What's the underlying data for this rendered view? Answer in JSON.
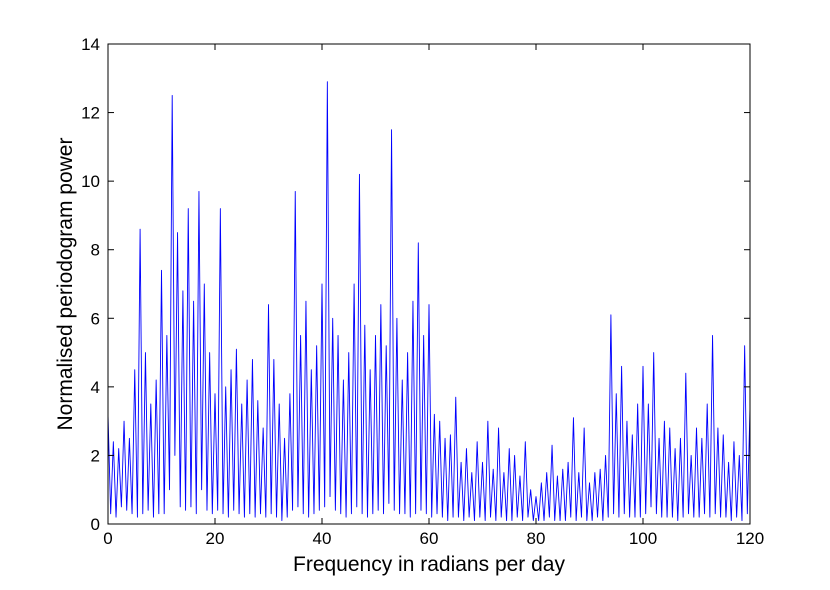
{
  "chart_data": {
    "type": "line",
    "x_label": "Frequency in radians per day",
    "y_label": "Normalised periodogram power",
    "color": "#0000ff",
    "xlim": [
      0,
      120
    ],
    "ylim": [
      0,
      14
    ],
    "xticks": [
      0,
      20,
      40,
      60,
      80,
      100,
      120
    ],
    "yticks": [
      0,
      2,
      4,
      6,
      8,
      10,
      12,
      14
    ],
    "grid": false,
    "x": [
      0,
      0.5,
      1,
      1.5,
      2,
      2.5,
      3,
      3.5,
      4,
      4.5,
      5,
      5.5,
      6,
      6.5,
      7,
      7.5,
      8,
      8.5,
      9,
      9.5,
      10,
      10.5,
      11,
      11.5,
      12,
      12.5,
      13,
      13.5,
      14,
      14.5,
      15,
      15.5,
      16,
      16.5,
      17,
      17.5,
      18,
      18.5,
      19,
      19.5,
      20,
      20.5,
      21,
      21.5,
      22,
      22.5,
      23,
      23.5,
      24,
      24.5,
      25,
      25.5,
      26,
      26.5,
      27,
      27.5,
      28,
      28.5,
      29,
      29.5,
      30,
      30.5,
      31,
      31.5,
      32,
      32.5,
      33,
      33.5,
      34,
      34.5,
      35,
      35.5,
      36,
      36.5,
      37,
      37.5,
      38,
      38.5,
      39,
      39.5,
      40,
      40.5,
      41,
      41.5,
      42,
      42.5,
      43,
      43.5,
      44,
      44.5,
      45,
      45.5,
      46,
      46.5,
      47,
      47.5,
      48,
      48.5,
      49,
      49.5,
      50,
      50.5,
      51,
      51.5,
      52,
      52.5,
      53,
      53.5,
      54,
      54.5,
      55,
      55.5,
      56,
      56.5,
      57,
      57.5,
      58,
      58.5,
      59,
      59.5,
      60,
      60.5,
      61,
      61.5,
      62,
      62.5,
      63,
      63.5,
      64,
      64.5,
      65,
      65.5,
      66,
      66.5,
      67,
      67.5,
      68,
      68.5,
      69,
      69.5,
      70,
      70.5,
      71,
      71.5,
      72,
      72.5,
      73,
      73.5,
      74,
      74.5,
      75,
      75.5,
      76,
      76.5,
      77,
      77.5,
      78,
      78.5,
      79,
      79.5,
      80,
      80.5,
      81,
      81.5,
      82,
      82.5,
      83,
      83.5,
      84,
      84.5,
      85,
      85.5,
      86,
      86.5,
      87,
      87.5,
      88,
      88.5,
      89,
      89.5,
      90,
      90.5,
      91,
      91.5,
      92,
      92.5,
      93,
      93.5,
      94,
      94.5,
      95,
      95.5,
      96,
      96.5,
      97,
      97.5,
      98,
      98.5,
      99,
      99.5,
      100,
      100.5,
      101,
      101.5,
      102,
      102.5,
      103,
      103.5,
      104,
      104.5,
      105,
      105.5,
      106,
      106.5,
      107,
      107.5,
      108,
      108.5,
      109,
      109.5,
      110,
      110.5,
      111,
      111.5,
      112,
      112.5,
      113,
      113.5,
      114,
      114.5,
      115,
      115.5,
      116,
      116.5,
      117,
      117.5,
      118,
      118.5,
      119,
      119.5,
      120
    ],
    "values": [
      3.2,
      0.3,
      2.4,
      0.2,
      2.2,
      0.5,
      3.0,
      0.4,
      2.5,
      0.3,
      4.5,
      0.2,
      8.6,
      0.3,
      5.0,
      0.4,
      3.5,
      0.2,
      4.2,
      0.3,
      7.4,
      0.3,
      5.5,
      1.0,
      12.5,
      2.0,
      8.5,
      0.5,
      6.8,
      0.4,
      9.2,
      0.5,
      6.5,
      0.3,
      9.7,
      1.0,
      7.0,
      0.4,
      5.0,
      0.3,
      3.8,
      0.4,
      9.2,
      0.3,
      4.0,
      0.2,
      4.5,
      0.4,
      5.1,
      0.3,
      3.5,
      0.2,
      4.2,
      0.3,
      4.8,
      0.2,
      3.6,
      0.3,
      2.8,
      0.2,
      6.4,
      0.3,
      4.8,
      0.2,
      3.5,
      0.1,
      2.5,
      0.2,
      3.8,
      0.4,
      9.7,
      0.5,
      5.5,
      0.3,
      6.5,
      0.2,
      4.5,
      0.3,
      5.2,
      0.4,
      7.0,
      0.5,
      12.9,
      0.8,
      6.0,
      0.4,
      5.5,
      0.3,
      4.2,
      0.2,
      5.0,
      0.3,
      7.0,
      0.5,
      10.2,
      0.3,
      5.8,
      0.2,
      4.5,
      0.3,
      5.5,
      0.4,
      6.4,
      0.3,
      5.2,
      0.6,
      11.5,
      0.4,
      6.0,
      0.3,
      4.2,
      0.3,
      5.0,
      0.2,
      6.5,
      0.3,
      8.2,
      0.4,
      5.5,
      0.3,
      6.4,
      0.2,
      3.2,
      0.3,
      3.0,
      0.2,
      2.5,
      0.1,
      2.6,
      0.2,
      3.7,
      0.2,
      1.8,
      0.1,
      2.2,
      0.2,
      1.5,
      0.1,
      2.4,
      0.2,
      1.8,
      0.1,
      3.0,
      0.2,
      1.6,
      0.1,
      2.8,
      0.2,
      1.5,
      0.1,
      2.2,
      0.1,
      2.0,
      0.2,
      1.4,
      0.1,
      2.4,
      0.2,
      1.0,
      0.1,
      0.8,
      0.1,
      1.2,
      0.1,
      1.5,
      0.2,
      2.3,
      0.1,
      1.4,
      0.1,
      1.6,
      0.1,
      1.8,
      0.2,
      3.1,
      0.1,
      1.5,
      0.2,
      2.8,
      0.1,
      1.2,
      0.1,
      1.5,
      0.2,
      1.6,
      0.1,
      2.0,
      0.2,
      6.1,
      0.3,
      3.8,
      0.2,
      4.6,
      0.3,
      3.0,
      0.2,
      2.6,
      0.2,
      3.5,
      0.2,
      4.6,
      0.3,
      3.5,
      0.5,
      5.0,
      0.3,
      2.5,
      0.2,
      3.0,
      0.2,
      2.8,
      0.2,
      2.2,
      0.1,
      2.5,
      0.2,
      4.4,
      0.3,
      2.0,
      0.2,
      2.8,
      0.2,
      2.5,
      0.3,
      3.5,
      0.2,
      5.5,
      0.3,
      2.8,
      0.2,
      2.6,
      0.2,
      1.8,
      0.1,
      2.4,
      0.2,
      2.0,
      0.1,
      5.2,
      0.3,
      3.4
    ]
  }
}
